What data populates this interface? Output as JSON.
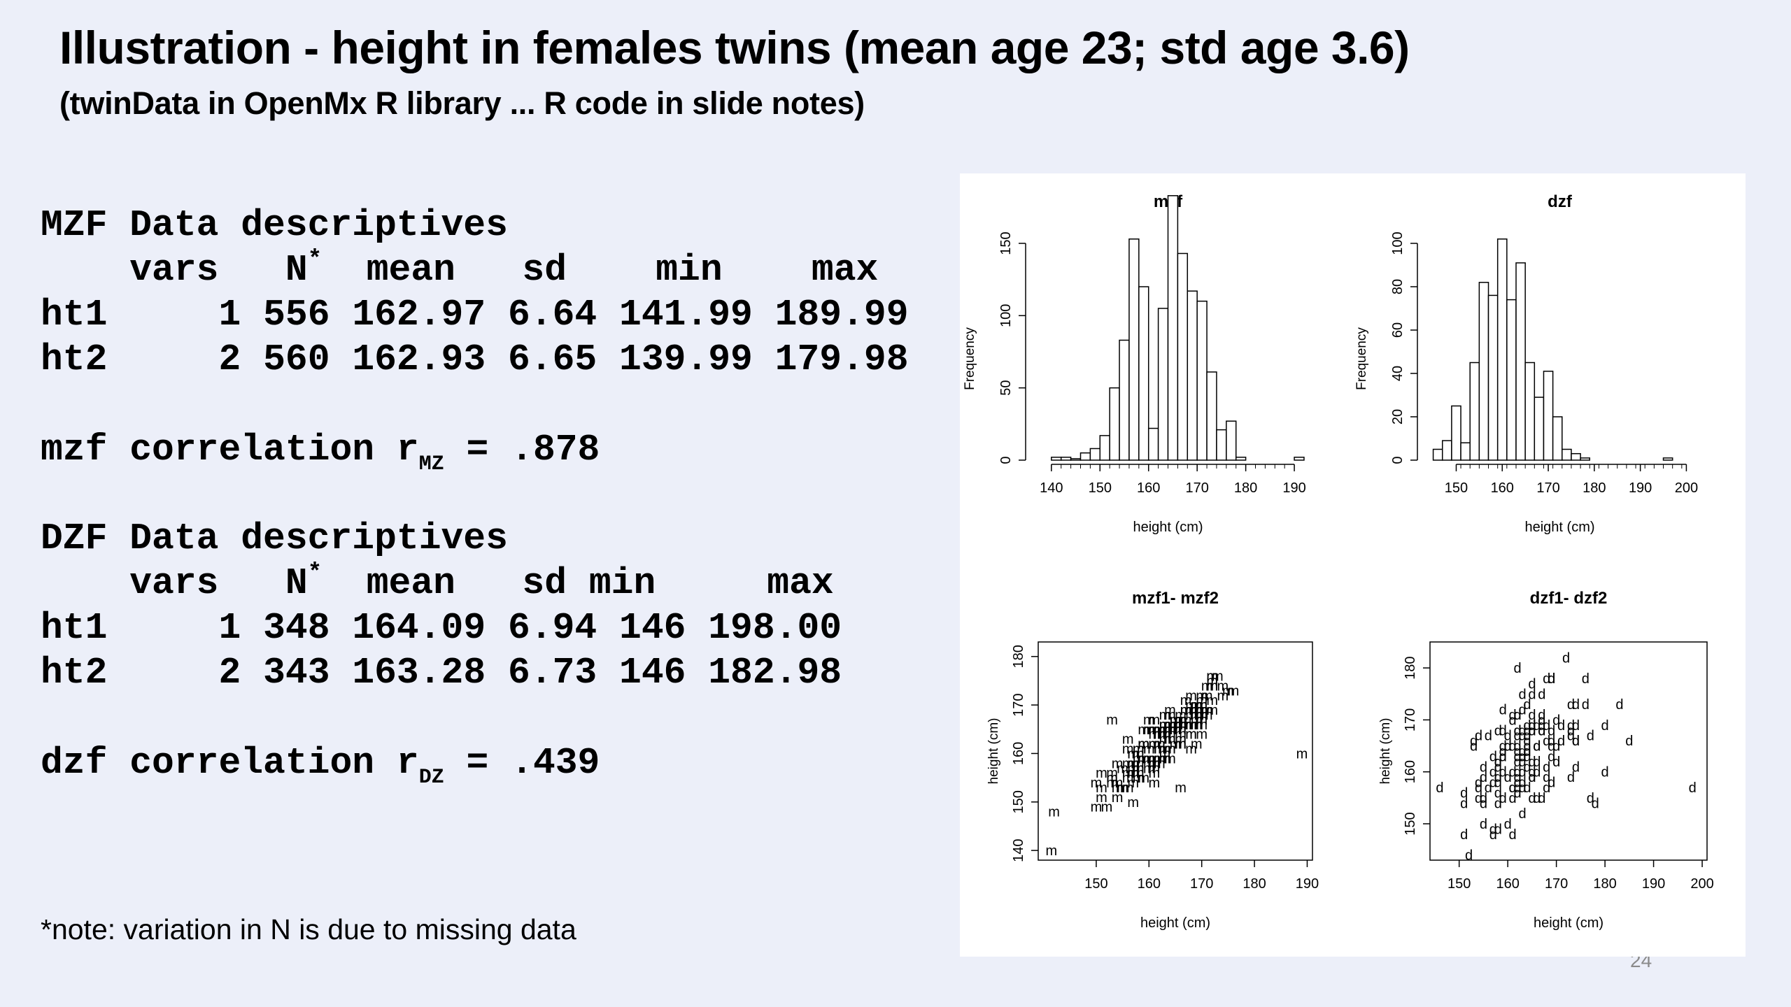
{
  "header": {
    "title": "Illustration - height in females twins (mean age 23; std age 3.6)",
    "subtitle": "(twinData in OpenMx R library ... R code in slide notes)"
  },
  "mzf": {
    "heading": "MZF Data descriptives",
    "columns": [
      "vars",
      "N",
      "mean",
      "sd",
      "min",
      "max"
    ],
    "rows": [
      {
        "label": "ht1",
        "vars": "1",
        "n": "556",
        "mean": "162.97",
        "sd": "6.64",
        "min": "141.99",
        "max": "189.99"
      },
      {
        "label": "ht2",
        "vars": "2",
        "n": "560",
        "mean": "162.93",
        "sd": "6.65",
        "min": "139.99",
        "max": "179.98"
      }
    ],
    "corr_prefix": "mzf correlation r",
    "corr_sub": "MZ",
    "corr_value": "= .878"
  },
  "dzf": {
    "heading": "DZF Data descriptives",
    "columns": [
      "vars",
      "N",
      "mean",
      "sd",
      "min",
      "max"
    ],
    "rows": [
      {
        "label": "ht1",
        "vars": "1",
        "n": "348",
        "mean": "164.09",
        "sd": "6.94",
        "min": "146",
        "max": "198.00"
      },
      {
        "label": "ht2",
        "vars": "2",
        "n": "343",
        "mean": "163.28",
        "sd": "6.73",
        "min": "146",
        "max": "182.98"
      }
    ],
    "corr_prefix": "dzf correlation r",
    "corr_sub": "DZ",
    "corr_value": "= .439"
  },
  "note": "*note: variation in N is due to missing data",
  "page_number": "24",
  "colors": {
    "background": "#eceff9",
    "figure_bg": "#ffffff",
    "ink": "#000000",
    "page_number": "#8a8a8a"
  },
  "chart_data": [
    {
      "type": "bar",
      "title": "mzf",
      "xlabel": "height (cm)",
      "ylabel": "Frequency",
      "xlim": [
        137,
        191
      ],
      "ylim": [
        0,
        150
      ],
      "xticks": [
        140,
        150,
        160,
        170,
        180,
        190
      ],
      "yticks": [
        0,
        50,
        100,
        150
      ],
      "bin_start": 140,
      "bin_width": 2,
      "values": [
        2,
        2,
        1,
        5,
        8,
        17,
        50,
        83,
        153,
        120,
        22,
        105,
        183,
        143,
        117,
        110,
        61,
        21,
        27,
        2,
        0,
        0,
        0,
        0,
        0,
        2
      ]
    },
    {
      "type": "bar",
      "title": "dzf",
      "xlabel": "height (cm)",
      "ylabel": "Frequency",
      "xlim": [
        144,
        201
      ],
      "ylim": [
        0,
        100
      ],
      "xticks": [
        150,
        160,
        170,
        180,
        190,
        200
      ],
      "yticks": [
        0,
        20,
        40,
        60,
        80,
        100
      ],
      "bin_start": 145,
      "bin_width": 2,
      "values": [
        5,
        9,
        25,
        8,
        45,
        82,
        76,
        102,
        74,
        91,
        45,
        29,
        41,
        20,
        5,
        3,
        1,
        0,
        0,
        0,
        0,
        0,
        0,
        0,
        0,
        1
      ]
    },
    {
      "type": "scatter",
      "title": "mzf1- mzf2",
      "xlabel": "height (cm)",
      "ylabel": "height (cm)",
      "marker": "m",
      "xlim": [
        139,
        191
      ],
      "ylim": [
        138,
        183
      ],
      "xticks": [
        150,
        160,
        170,
        180,
        190
      ],
      "yticks": [
        140,
        150,
        160,
        170,
        180
      ],
      "r": 0.878,
      "n_points": 180,
      "outliers": [
        [
          141.5,
          140
        ],
        [
          189,
          160
        ],
        [
          157,
          150
        ],
        [
          153,
          167
        ],
        [
          166,
          153
        ]
      ]
    },
    {
      "type": "scatter",
      "title": "dzf1- dzf2",
      "xlabel": "height (cm)",
      "ylabel": "height (cm)",
      "marker": "d",
      "xlim": [
        144,
        201
      ],
      "ylim": [
        143,
        185
      ],
      "xticks": [
        150,
        160,
        170,
        180,
        190,
        200
      ],
      "yticks": [
        150,
        160,
        170,
        180
      ],
      "r": 0.439,
      "n_points": 150,
      "outliers": [
        [
          198,
          157
        ],
        [
          162,
          180
        ],
        [
          183,
          173
        ],
        [
          178,
          154
        ],
        [
          172,
          182
        ],
        [
          185,
          166
        ],
        [
          152,
          144
        ]
      ]
    }
  ]
}
